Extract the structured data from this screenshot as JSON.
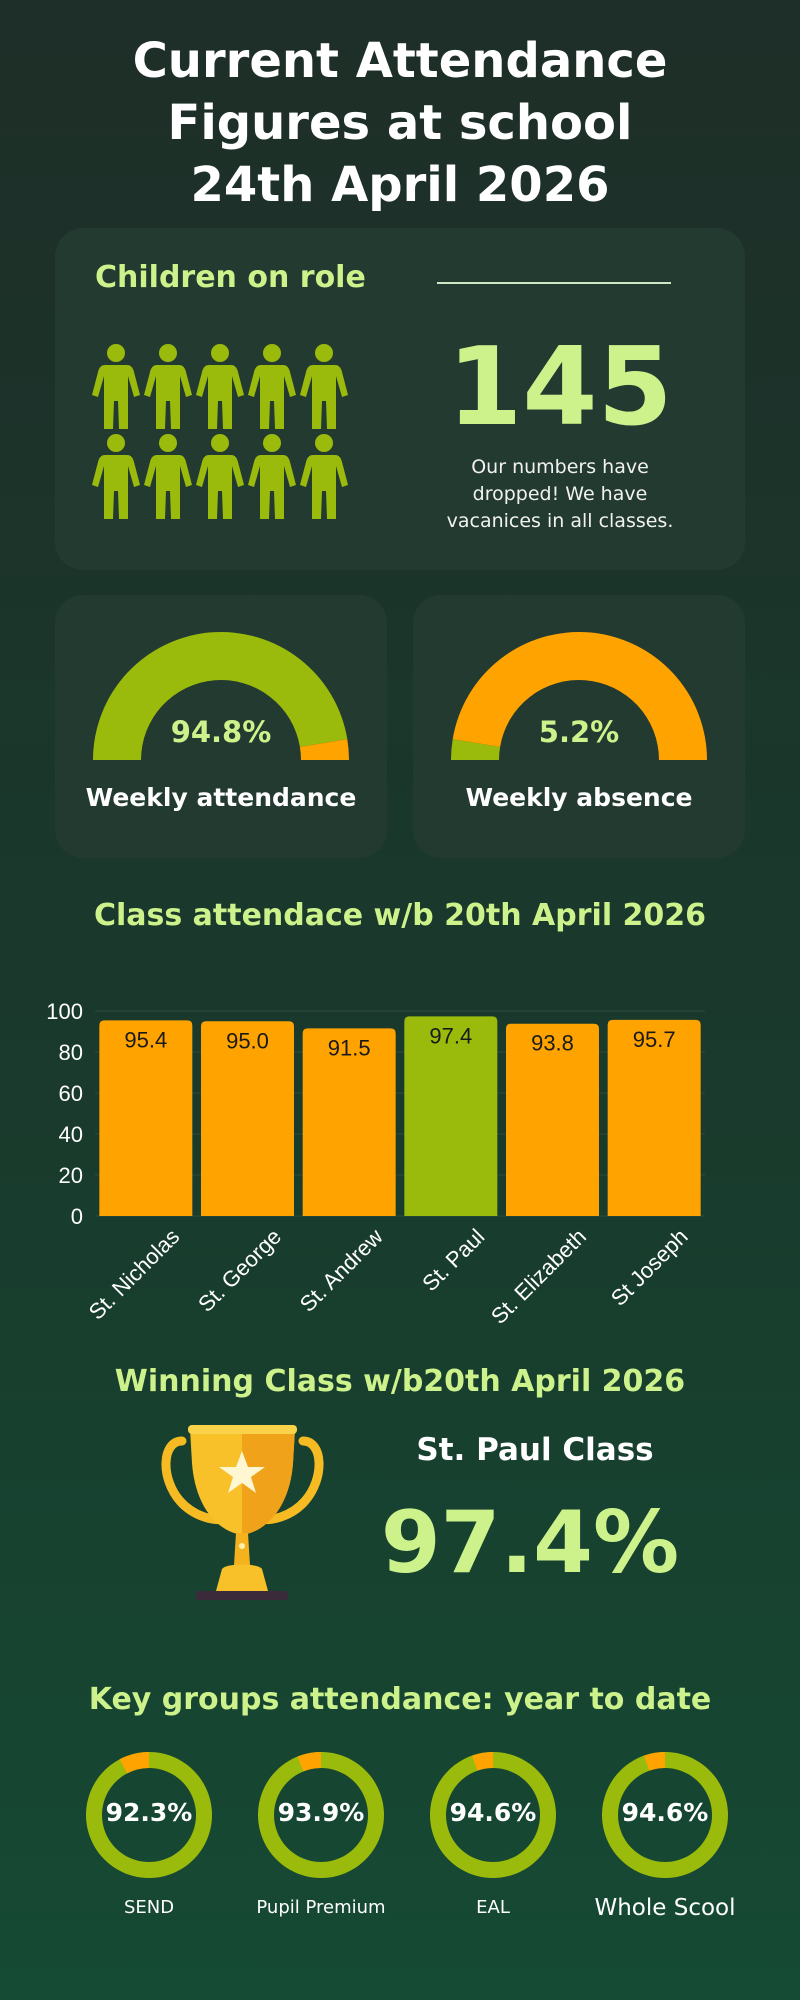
{
  "title": {
    "line1": "Current Attendance",
    "line2": "Figures at school",
    "line3": "24th April 2026"
  },
  "children_on_role": {
    "heading": "Children on role",
    "number": "145",
    "note": "Our numbers have dropped! We have vacanices in all classes.",
    "icon": "person-icon",
    "icon_count": 10
  },
  "gauges": [
    {
      "value": "94.8%",
      "label": "Weekly attendance",
      "fraction": 0.948,
      "fill_color": "#9bbb0c",
      "rest_color": "#ffa300"
    },
    {
      "value": "5.2%",
      "label": "Weekly absence",
      "fraction": 0.052,
      "fill_color": "#9bbb0c",
      "rest_color": "#ffa300"
    }
  ],
  "class_chart": {
    "heading": "Class attendace w/b 20th April 2026"
  },
  "chart_data": {
    "type": "bar",
    "categories": [
      "St. Nicholas",
      "St. George",
      "St. Andrew",
      "St. Paul",
      "St. Elizabeth",
      "St Joseph"
    ],
    "values": [
      95.4,
      95.0,
      91.5,
      97.4,
      93.8,
      95.7
    ],
    "data_labels": [
      "95.4",
      "95.0",
      "91.5",
      "97.4",
      "93.8",
      "95.7"
    ],
    "yticks": [
      "0",
      "20",
      "40",
      "60",
      "80",
      "100"
    ],
    "ylim": [
      0,
      100
    ],
    "highlight_index": 3,
    "colors": {
      "bar": "#ffa300",
      "highlight": "#9bbb0c"
    },
    "grid": true,
    "legend": "none"
  },
  "winner": {
    "heading": "Winning Class w/b20th April 2026",
    "class_name": "St. Paul Class",
    "value": "97.4%",
    "icon": "trophy-icon"
  },
  "key_groups": {
    "heading": "Key groups attendance: year to date",
    "items": [
      {
        "value": "92.3%",
        "label": "SEND",
        "fraction": 0.923
      },
      {
        "value": "93.9%",
        "label": "Pupil Premium",
        "fraction": 0.939
      },
      {
        "value": "94.6%",
        "label": "EAL",
        "fraction": 0.946
      },
      {
        "value": "94.6%",
        "label": "Whole Scool",
        "fraction": 0.946
      }
    ],
    "colors": {
      "main": "#9bbb0c",
      "rest": "#ffa300"
    }
  },
  "colors": {
    "accent": "#cdf28b",
    "green": "#9bbb0c",
    "orange": "#ffa300",
    "card": "#233a31"
  }
}
